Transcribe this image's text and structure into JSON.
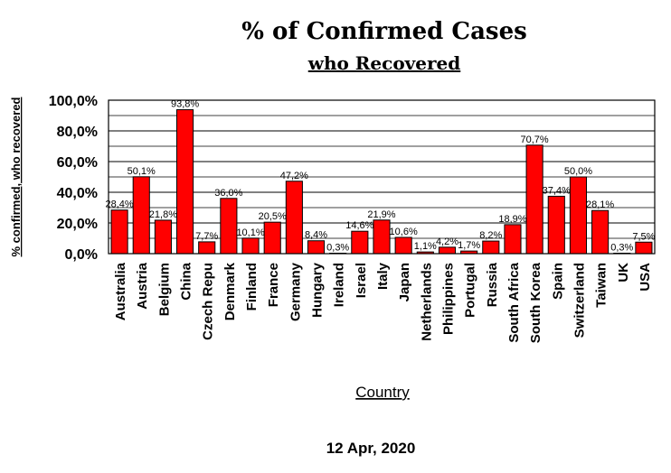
{
  "chart_data": {
    "type": "bar",
    "title": "% of Confirmed Cases",
    "subtitle": "who Recovered",
    "xlabel": "Country",
    "ylabel": "% confirmed, who recovered",
    "footer": "12 Apr, 2020",
    "ylim": [
      0,
      100
    ],
    "yticks": [
      "0,0%",
      "20,0%",
      "40,0%",
      "60,0%",
      "80,0%",
      "100,0%"
    ],
    "grid": true,
    "bar_color": "#ff0000",
    "categories": [
      "Australia",
      "Austria",
      "Belgium",
      "China",
      "Czech Repu",
      "Denmark",
      "Finland",
      "France",
      "Germany",
      "Hungary",
      "Ireland",
      "Israel",
      "Italy",
      "Japan",
      "Netherlands",
      "Philippines",
      "Portugal",
      "Russia",
      "South Africa",
      "South Korea",
      "Spain",
      "Switzerland",
      "Taiwan",
      "UK",
      "USA"
    ],
    "values": [
      28.4,
      50.1,
      21.8,
      93.8,
      7.7,
      36.0,
      10.1,
      20.5,
      47.2,
      8.4,
      0.3,
      14.6,
      21.9,
      10.6,
      1.1,
      4.2,
      1.7,
      8.2,
      18.9,
      70.7,
      37.4,
      50.0,
      28.1,
      0.3,
      7.5
    ],
    "data_labels": [
      "28,4%",
      "50,1%",
      "21,8%",
      "93,8%",
      "7,7%",
      "36,0%",
      "10,1%",
      "20,5%",
      "47,2%",
      "8,4%",
      "0,3%",
      "14,6%",
      "21,9%",
      "10,6%",
      "1,1%",
      "4,2%",
      "1,7%",
      "8,2%",
      "18,9%",
      "70,7%",
      "37,4%",
      "50,0%",
      "28,1%",
      "0,3%",
      "7,5%"
    ]
  }
}
